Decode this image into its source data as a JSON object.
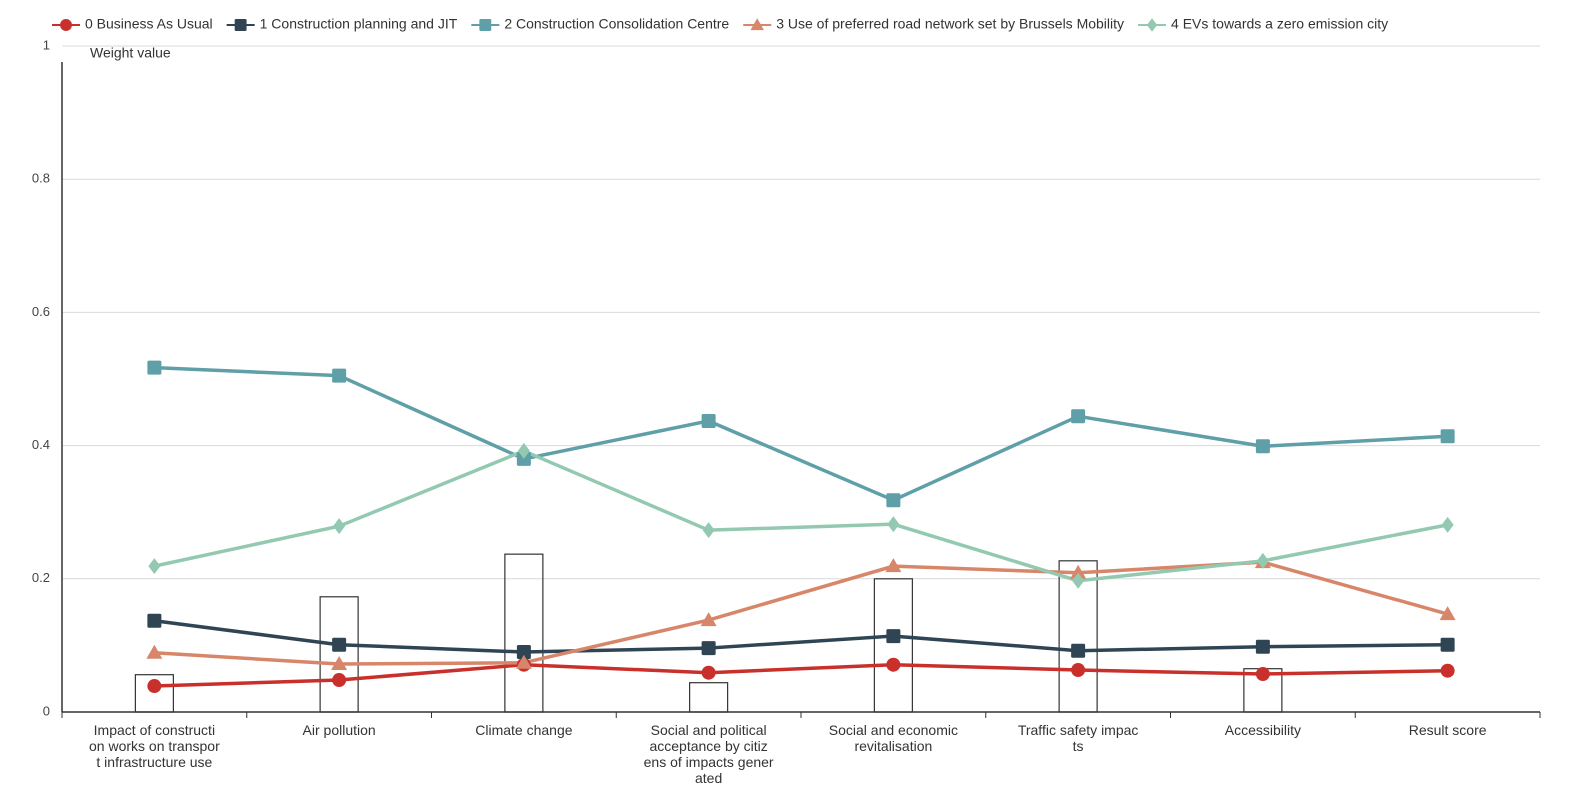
{
  "chart_data": {
    "type": "line",
    "y_label": "Weight value",
    "categories": [
      "Impact of construction works on transport infrastructure use",
      "Air pollution",
      "Climate change",
      "Social and political acceptance by citizens of impacts generated",
      "Social and economic revitalisation",
      "Traffic safety impacts",
      "Accessibility",
      "Result score"
    ],
    "bar_values": [
      0.056,
      0.173,
      0.237,
      0.044,
      0.2,
      0.227,
      0.065,
      null
    ],
    "series": [
      {
        "name": "0 Business As Usual",
        "color": "#c9302c",
        "marker": "circle",
        "values": [
          0.039,
          0.048,
          0.071,
          0.059,
          0.071,
          0.063,
          0.057,
          0.062
        ]
      },
      {
        "name": "1 Construction planning and JIT",
        "color": "#2f4554",
        "marker": "square",
        "values": [
          0.137,
          0.101,
          0.09,
          0.096,
          0.114,
          0.092,
          0.098,
          0.101
        ]
      },
      {
        "name": "2 Construction Consolidation Centre",
        "color": "#5e9fa8",
        "marker": "square",
        "values": [
          0.517,
          0.505,
          0.38,
          0.437,
          0.318,
          0.444,
          0.399,
          0.414
        ]
      },
      {
        "name": "3 Use of preferred road network set by Brussels Mobility",
        "color": "#d8866a",
        "marker": "triangle",
        "values": [
          0.089,
          0.072,
          0.074,
          0.138,
          0.219,
          0.209,
          0.225,
          0.147
        ]
      },
      {
        "name": "4 EVs towards a zero emission city",
        "color": "#93c9b0",
        "marker": "diamond",
        "values": [
          0.219,
          0.279,
          0.392,
          0.273,
          0.282,
          0.197,
          0.227,
          0.281
        ]
      }
    ],
    "ylim": [
      0,
      1
    ],
    "yticks": [
      0,
      0.2,
      0.4,
      0.6,
      0.8,
      1
    ],
    "grid": true
  }
}
